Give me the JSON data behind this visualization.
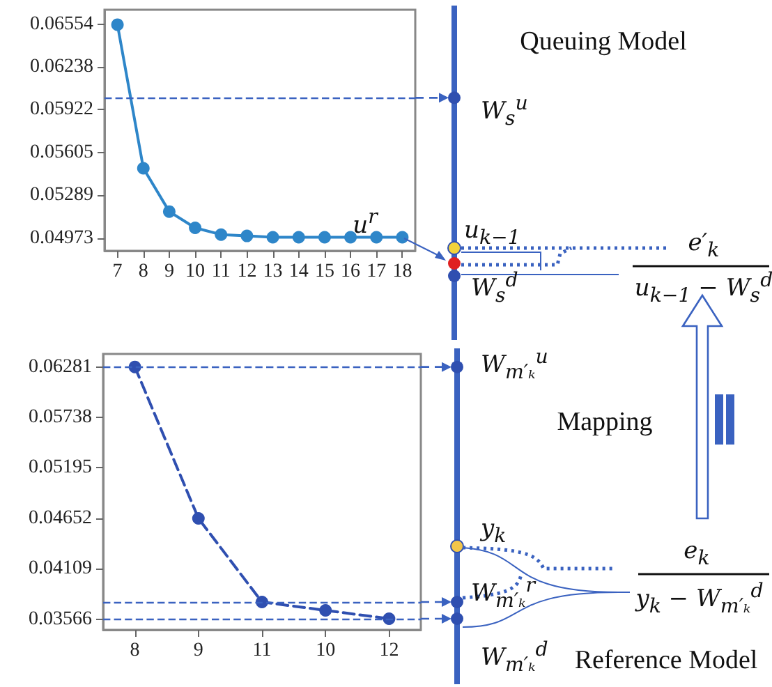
{
  "chart_data": [
    {
      "type": "line",
      "categories": [
        "7",
        "8",
        "9",
        "10",
        "11",
        "12",
        "13",
        "14",
        "15",
        "16",
        "17",
        "18"
      ],
      "series": [
        {
          "color": "#2e86c9",
          "values": [
            0.0655,
            0.0549,
            0.0517,
            0.0505,
            0.05,
            0.0499,
            0.0498,
            0.0498,
            0.0498,
            0.0498,
            0.0498,
            0.0498
          ]
        }
      ],
      "ylim": [
        0.0488,
        0.0666
      ],
      "yticks": [
        0.04973,
        0.05289,
        0.05605,
        0.05922,
        0.06238,
        0.06554
      ],
      "grid": false,
      "marker": "circle",
      "line_style": "solid",
      "ref_lines": [
        {
          "axis": "y",
          "value": 0.0601,
          "color": "#3a62c0",
          "line_style": "dashed"
        }
      ],
      "annotations": [
        "Queuing Model",
        "W$_{s}$$^{u}$",
        "u$^{r}$",
        "u$_{k−1}$",
        "W$_{s}$$^{d}$",
        "e′$_{k}$",
        "u$_{k−1}$ − W$_{s}$$^{d}$"
      ]
    },
    {
      "type": "line",
      "categories": [
        "8",
        "9",
        "11",
        "10",
        "12"
      ],
      "series": [
        {
          "color": "#2f4fb0",
          "values": [
            0.0628,
            0.0465,
            0.0375,
            0.0366,
            0.0357
          ]
        }
      ],
      "ylim": [
        0.0345,
        0.0642
      ],
      "yticks": [
        0.03566,
        0.04109,
        0.04652,
        0.05195,
        0.05738,
        0.06281
      ],
      "grid": false,
      "marker": "circle",
      "line_style": "dashed",
      "ref_lines": [
        {
          "axis": "y",
          "value": 0.0628,
          "color": "#3a62c0",
          "line_style": "dashed"
        },
        {
          "axis": "y",
          "value": 0.0375,
          "color": "#3a62c0",
          "line_style": "dashed"
        },
        {
          "axis": "y",
          "value": 0.0357,
          "color": "#3a62c0",
          "line_style": "dashed"
        }
      ],
      "annotations": [
        "W$_{m′ₖ}$$^{u}$",
        "Mapping",
        "y$_{k}$",
        "W$_{m′ₖ}$$^{r}$",
        "W$_{m′ₖ}$$^{d}$",
        "e$_{k}$",
        "y$_{k}$ − W$_{m′ₖ}$$^{d}$",
        "Reference Model"
      ]
    }
  ]
}
